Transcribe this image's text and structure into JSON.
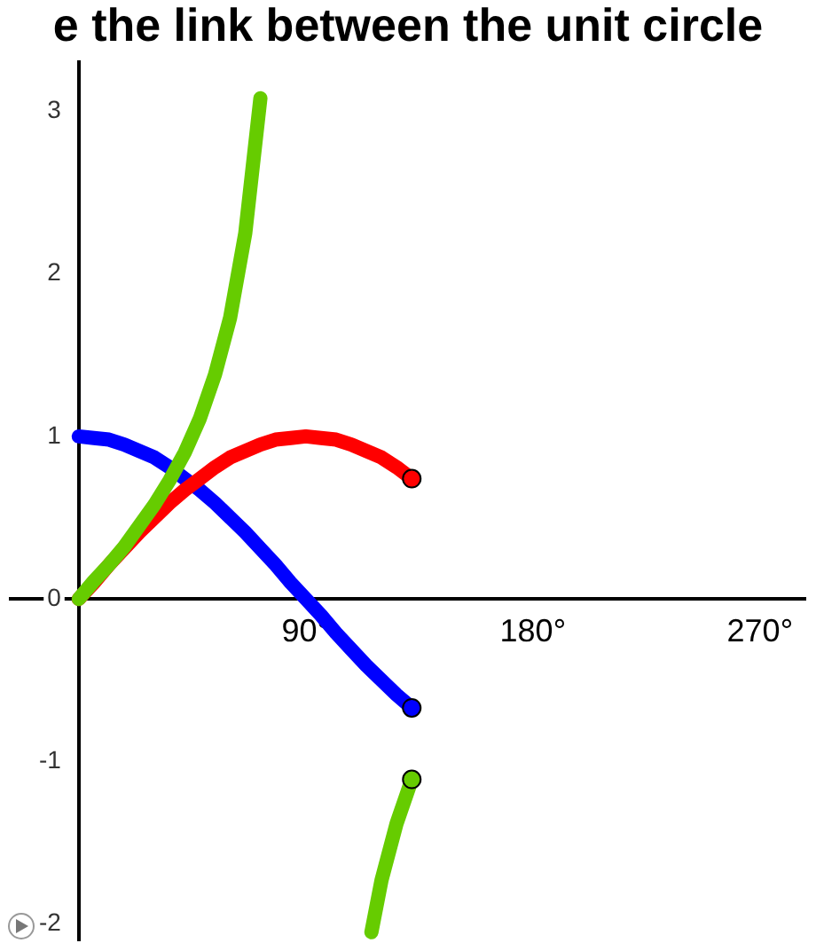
{
  "chart_data": {
    "type": "line",
    "title": "e the link between the unit circle",
    "xlim": [
      -27,
      288
    ],
    "ylim": [
      -2.1,
      3.3
    ],
    "xticks": [
      {
        "value": 90,
        "label": "90°"
      },
      {
        "value": 180,
        "label": "180°"
      },
      {
        "value": 270,
        "label": "270°"
      }
    ],
    "yticks": [
      -2,
      -1,
      0,
      1,
      2,
      3
    ],
    "grid": false,
    "legend": false,
    "series": [
      {
        "color": "#66cc00",
        "x": [
          0,
          6,
          12,
          18,
          24,
          30,
          36,
          42,
          48,
          54,
          60,
          66,
          72,
          90,
          116,
          120,
          126,
          132
        ],
        "values": [
          0,
          0.11,
          0.21,
          0.32,
          0.45,
          0.58,
          0.73,
          0.9,
          1.11,
          1.38,
          1.73,
          2.25,
          3.08,
          null,
          -2.05,
          -1.73,
          -1.38,
          -1.11
        ]
      },
      {
        "color": "#ff0000",
        "x": [
          0,
          6,
          12,
          18,
          24,
          30,
          36,
          42,
          48,
          54,
          60,
          66,
          72,
          78,
          84,
          90,
          96,
          102,
          108,
          114,
          120,
          126,
          132
        ],
        "values": [
          0,
          0.1,
          0.21,
          0.31,
          0.41,
          0.5,
          0.59,
          0.67,
          0.74,
          0.81,
          0.87,
          0.91,
          0.95,
          0.98,
          0.99,
          1,
          0.99,
          0.98,
          0.95,
          0.91,
          0.87,
          0.81,
          0.74
        ]
      },
      {
        "color": "#0000ff",
        "x": [
          0,
          6,
          12,
          18,
          24,
          30,
          36,
          42,
          48,
          54,
          60,
          66,
          72,
          78,
          84,
          90,
          96,
          102,
          108,
          114,
          120,
          126,
          132
        ],
        "values": [
          1,
          0.99,
          0.98,
          0.95,
          0.91,
          0.87,
          0.81,
          0.74,
          0.67,
          0.59,
          0.5,
          0.41,
          0.31,
          0.21,
          0.1,
          0,
          -0.1,
          -0.21,
          -0.31,
          -0.41,
          -0.5,
          -0.59,
          -0.67
        ]
      }
    ]
  }
}
